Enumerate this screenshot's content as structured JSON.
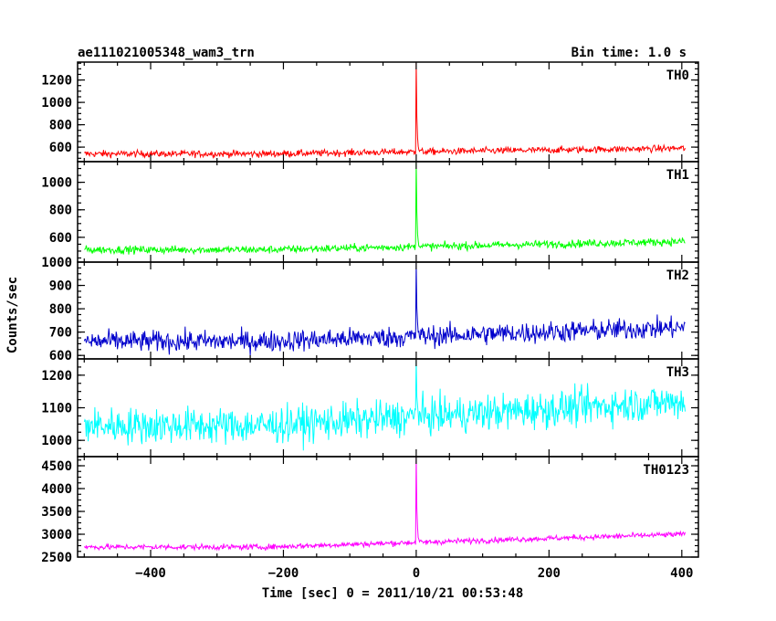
{
  "chart_data": {
    "type": "line",
    "title": "ae111021005348_wam3_trn",
    "bin_time": "Bin time: 1.0 s",
    "xlabel": "Time [sec] 0 = 2011/10/21 00:53:48",
    "ylabel": "Counts/sec",
    "xlim": [
      -510,
      425
    ],
    "x_ticks": [
      -400,
      -200,
      0,
      200,
      400
    ],
    "x_tick_labels": [
      "−400",
      "−200",
      "0",
      "200",
      "400"
    ],
    "x_range_data": [
      -500,
      405
    ],
    "panels": [
      {
        "name": "TH0",
        "color": "#ff0000",
        "ylim": [
          470,
          1360
        ],
        "yticks": [
          600,
          800,
          1000,
          1200
        ],
        "ytick_labels": [
          "600",
          "800",
          "1000",
          "1200"
        ],
        "baseline_start": 540,
        "baseline_end": 590,
        "noise": 30,
        "peak": 1360
      },
      {
        "name": "TH1",
        "color": "#00ff00",
        "ylim": [
          420,
          1150
        ],
        "yticks": [
          600,
          800,
          1000
        ],
        "ytick_labels": [
          "600",
          "800",
          "1000"
        ],
        "baseline_start": 510,
        "baseline_end": 570,
        "noise": 28,
        "peak": 1150
      },
      {
        "name": "TH2",
        "color": "#0000cc",
        "ylim": [
          585,
          1000
        ],
        "yticks": [
          600,
          700,
          800,
          900,
          1000
        ],
        "ytick_labels": [
          "600",
          "700",
          "800",
          "900",
          "1000"
        ],
        "baseline_start": 660,
        "baseline_end": 720,
        "noise": 45,
        "peak": 995
      },
      {
        "name": "TH3",
        "color": "#00ffff",
        "ylim": [
          950,
          1250
        ],
        "yticks": [
          1000,
          1100,
          1200
        ],
        "ytick_labels": [
          "1000",
          "1100",
          "1200"
        ],
        "baseline_start": 1045,
        "baseline_end": 1120,
        "noise": 55,
        "peak": 1245
      },
      {
        "name": "TH0123",
        "color": "#ff00ff",
        "ylim": [
          2500,
          4700
        ],
        "yticks": [
          2500,
          3000,
          3500,
          4000,
          4500
        ],
        "ytick_labels": [
          "2500",
          "3000",
          "3500",
          "4000",
          "4500"
        ],
        "baseline_start": 2720,
        "baseline_end": 3000,
        "noise": 60,
        "peak": 4700
      }
    ]
  }
}
